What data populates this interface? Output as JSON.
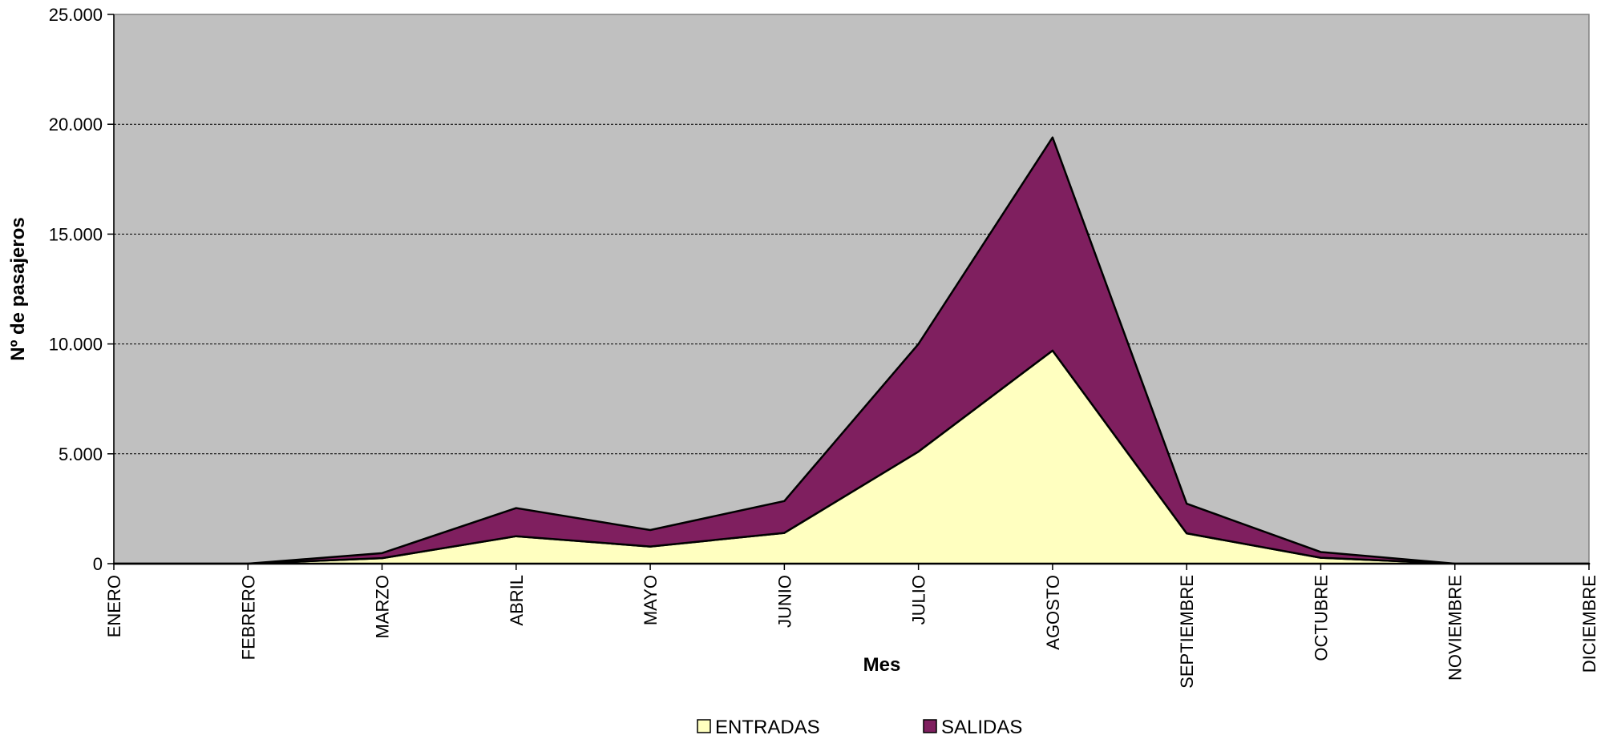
{
  "chart_data": {
    "type": "area",
    "stacked": true,
    "title": "",
    "xlabel": "Mes",
    "ylabel": "Nº de pasajeros",
    "categories": [
      "ENERO",
      "FEBRERO",
      "MARZO",
      "ABRIL",
      "MAYO",
      "JUNIO",
      "JULIO",
      "AGOSTO",
      "SEPTIEMBRE",
      "OCTUBRE",
      "NOVIEMBRE",
      "DICIEMBRE"
    ],
    "series": [
      {
        "name": "ENTRADAS",
        "color": "#ffffc0",
        "values": [
          0,
          0,
          250,
          1250,
          780,
          1400,
          5100,
          9700,
          1380,
          270,
          0,
          0
        ]
      },
      {
        "name": "SALIDAS",
        "color": "#7f1f5f",
        "values": [
          0,
          0,
          230,
          1280,
          750,
          1450,
          4900,
          9700,
          1350,
          260,
          0,
          0
        ]
      }
    ],
    "ylim": [
      0,
      25000
    ],
    "yticks": [
      0,
      5000,
      10000,
      15000,
      20000,
      25000
    ],
    "ytick_labels": [
      "0",
      "5.000",
      "10.000",
      "15.000",
      "20.000",
      "25.000"
    ],
    "grid": true,
    "plot_background": "#c0c0c0",
    "legend_position": "bottom"
  }
}
